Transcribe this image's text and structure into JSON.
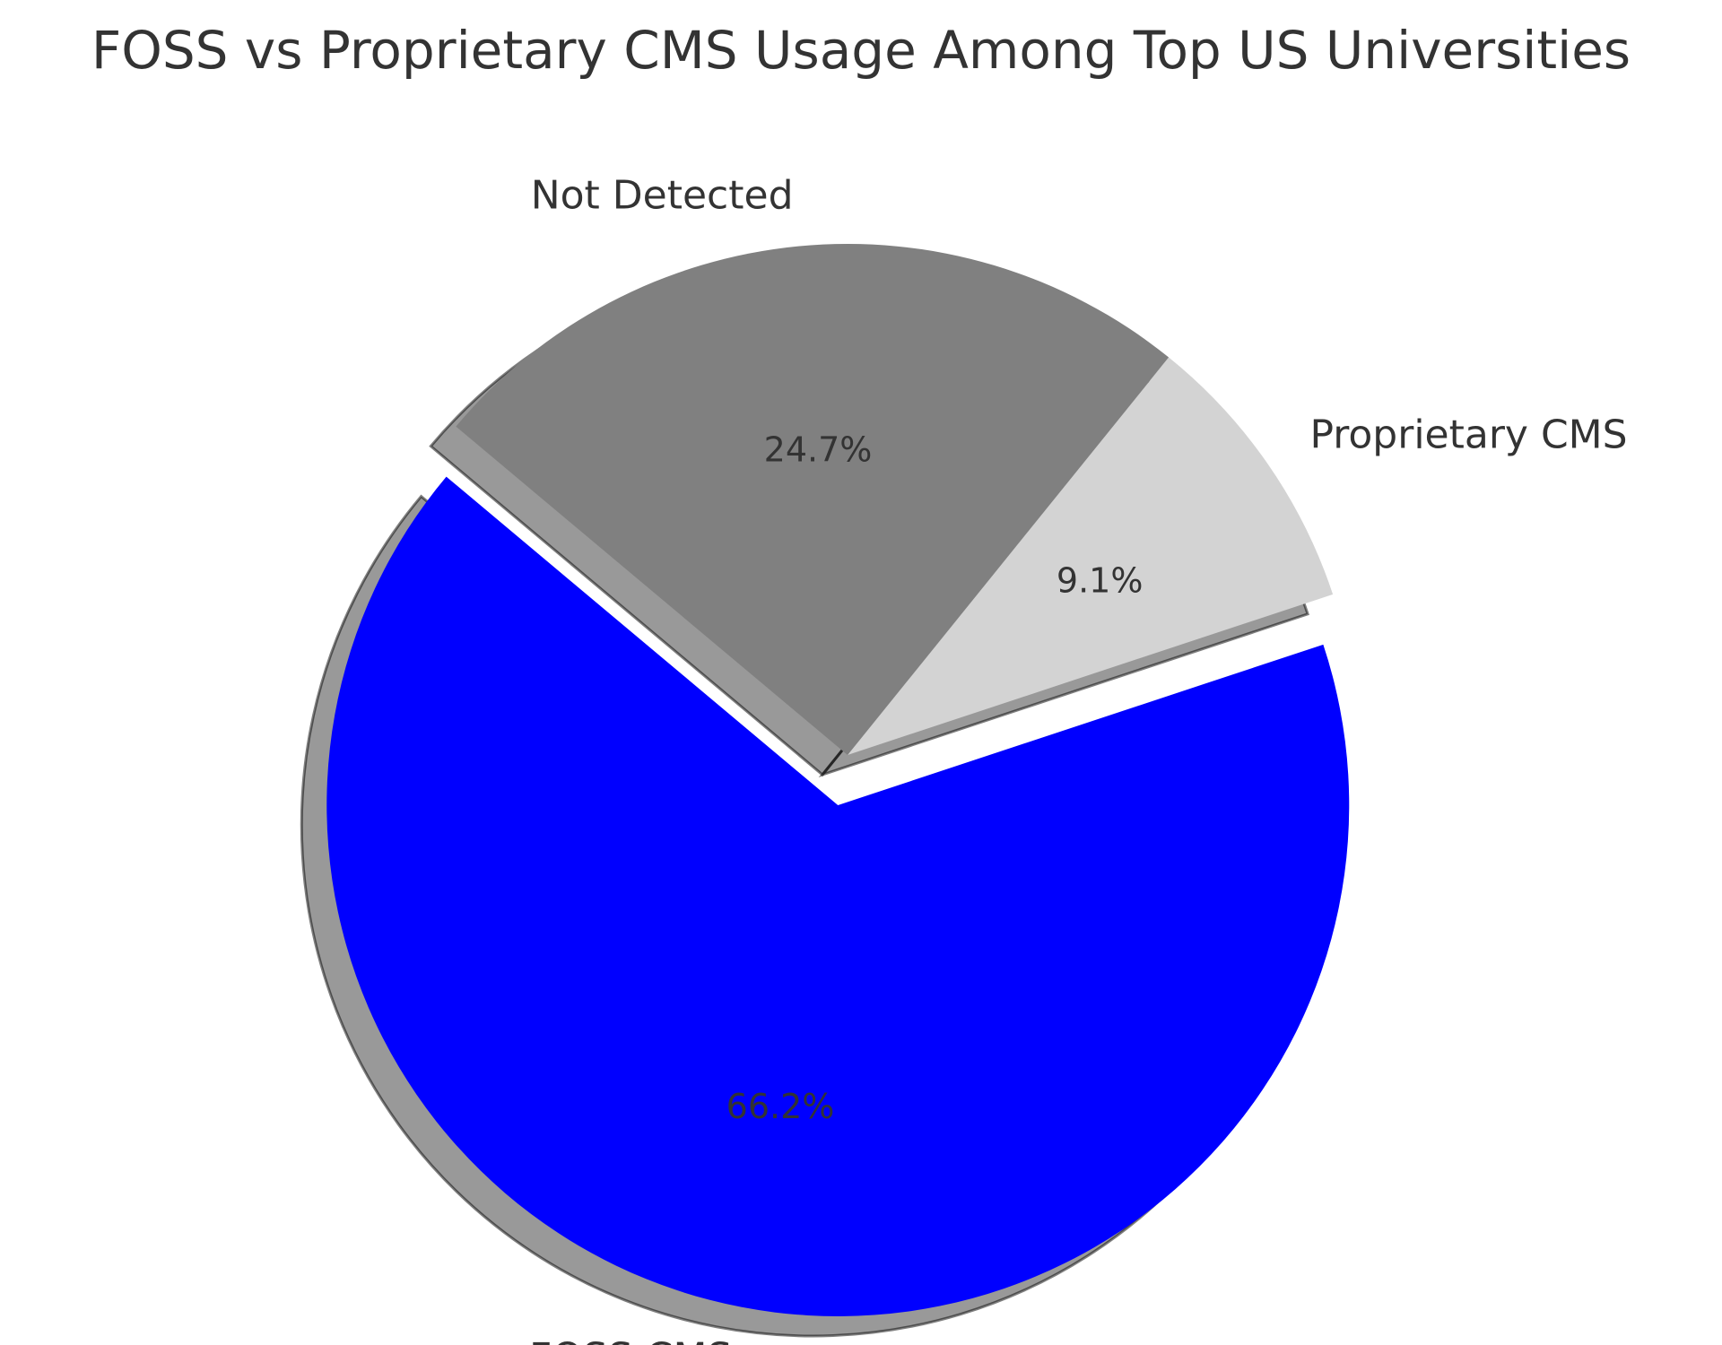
{
  "chart_data": {
    "type": "pie",
    "title": "FOSS vs Proprietary CMS Usage Among Top US Universities",
    "slices": [
      {
        "label": "FOSS CMS",
        "value": 66.2,
        "pct_label": "66.2%",
        "color": "#0000ff",
        "exploded": true
      },
      {
        "label": "Proprietary CMS",
        "value": 9.1,
        "pct_label": "9.1%",
        "color": "#d3d3d3",
        "exploded": false
      },
      {
        "label": "Not Detected",
        "value": 24.7,
        "pct_label": "24.7%",
        "color": "#808080",
        "exploded": false
      }
    ],
    "start_angle_deg": 140,
    "counterclockwise": true,
    "shadow": true,
    "legend": "none"
  }
}
